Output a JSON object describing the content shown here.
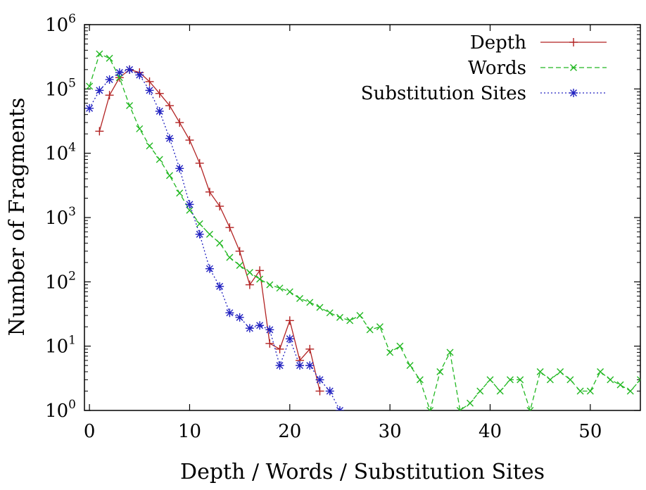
{
  "chart_data": {
    "type": "line",
    "title": "",
    "xlabel": "Depth / Words / Substitution Sites",
    "ylabel": "Number of Fragments",
    "xlim": [
      -0.5,
      55
    ],
    "ylim": [
      1,
      1000000
    ],
    "yscale": "log",
    "grid": false,
    "legend_position": "top-right",
    "x_ticks": [
      0,
      10,
      20,
      30,
      40,
      50
    ],
    "y_ticks": [
      {
        "value": 1,
        "base": "10",
        "exp": "0"
      },
      {
        "value": 10,
        "base": "10",
        "exp": "1"
      },
      {
        "value": 100,
        "base": "10",
        "exp": "2"
      },
      {
        "value": 1000,
        "base": "10",
        "exp": "3"
      },
      {
        "value": 10000,
        "base": "10",
        "exp": "4"
      },
      {
        "value": 100000,
        "base": "10",
        "exp": "5"
      },
      {
        "value": 1000000,
        "base": "10",
        "exp": "6"
      }
    ],
    "series": [
      {
        "name": "Depth",
        "color": "#b22222",
        "marker": "plus",
        "dash": "",
        "points": [
          [
            1,
            22000
          ],
          [
            2,
            80000
          ],
          [
            3,
            150000
          ],
          [
            4,
            200000
          ],
          [
            5,
            180000
          ],
          [
            6,
            130000
          ],
          [
            7,
            85000
          ],
          [
            8,
            55000
          ],
          [
            9,
            30000
          ],
          [
            10,
            16000
          ],
          [
            11,
            7000
          ],
          [
            12,
            2500
          ],
          [
            13,
            1500
          ],
          [
            14,
            700
          ],
          [
            15,
            300
          ],
          [
            16,
            90
          ],
          [
            17,
            150
          ],
          [
            18,
            11
          ],
          [
            19,
            9
          ],
          [
            20,
            25
          ],
          [
            21,
            6
          ],
          [
            22,
            9
          ],
          [
            23,
            2
          ]
        ]
      },
      {
        "name": "Words",
        "color": "#22b822",
        "marker": "cross",
        "dash": "7,4",
        "points": [
          [
            0,
            110000
          ],
          [
            1,
            350000
          ],
          [
            2,
            300000
          ],
          [
            3,
            150000
          ],
          [
            4,
            55000
          ],
          [
            5,
            24000
          ],
          [
            6,
            13000
          ],
          [
            7,
            8000
          ],
          [
            8,
            4500
          ],
          [
            9,
            2400
          ],
          [
            10,
            1300
          ],
          [
            11,
            800
          ],
          [
            12,
            550
          ],
          [
            13,
            400
          ],
          [
            14,
            240
          ],
          [
            15,
            180
          ],
          [
            16,
            140
          ],
          [
            17,
            110
          ],
          [
            18,
            90
          ],
          [
            19,
            80
          ],
          [
            20,
            70
          ],
          [
            21,
            55
          ],
          [
            22,
            48
          ],
          [
            23,
            40
          ],
          [
            24,
            33
          ],
          [
            25,
            28
          ],
          [
            26,
            25
          ],
          [
            27,
            30
          ],
          [
            28,
            18
          ],
          [
            29,
            20
          ],
          [
            30,
            8
          ],
          [
            31,
            10
          ],
          [
            32,
            5
          ],
          [
            33,
            3
          ],
          [
            34,
            1
          ],
          [
            35,
            4
          ],
          [
            36,
            8
          ],
          [
            37,
            1
          ],
          [
            38,
            1.3
          ],
          [
            39,
            2
          ],
          [
            40,
            3
          ],
          [
            41,
            2
          ],
          [
            42,
            3
          ],
          [
            43,
            3
          ],
          [
            44,
            1
          ],
          [
            45,
            4
          ],
          [
            46,
            3
          ],
          [
            47,
            4
          ],
          [
            48,
            3
          ],
          [
            49,
            2
          ],
          [
            50,
            2
          ],
          [
            51,
            4
          ],
          [
            52,
            3
          ],
          [
            53,
            2.5
          ],
          [
            54,
            2
          ],
          [
            55,
            3
          ]
        ]
      },
      {
        "name": "Substitution Sites",
        "color": "#2020c0",
        "marker": "star",
        "dash": "2,3",
        "points": [
          [
            0,
            50000
          ],
          [
            1,
            95000
          ],
          [
            2,
            140000
          ],
          [
            3,
            180000
          ],
          [
            4,
            200000
          ],
          [
            5,
            165000
          ],
          [
            6,
            95000
          ],
          [
            7,
            45000
          ],
          [
            8,
            17000
          ],
          [
            9,
            5800
          ],
          [
            10,
            1600
          ],
          [
            11,
            550
          ],
          [
            12,
            160
          ],
          [
            13,
            85
          ],
          [
            14,
            33
          ],
          [
            15,
            28
          ],
          [
            16,
            19
          ],
          [
            17,
            21
          ],
          [
            18,
            18
          ],
          [
            19,
            5
          ],
          [
            20,
            13
          ],
          [
            21,
            5
          ],
          [
            22,
            5
          ],
          [
            23,
            3
          ],
          [
            24,
            2
          ],
          [
            25,
            1
          ]
        ]
      }
    ]
  }
}
